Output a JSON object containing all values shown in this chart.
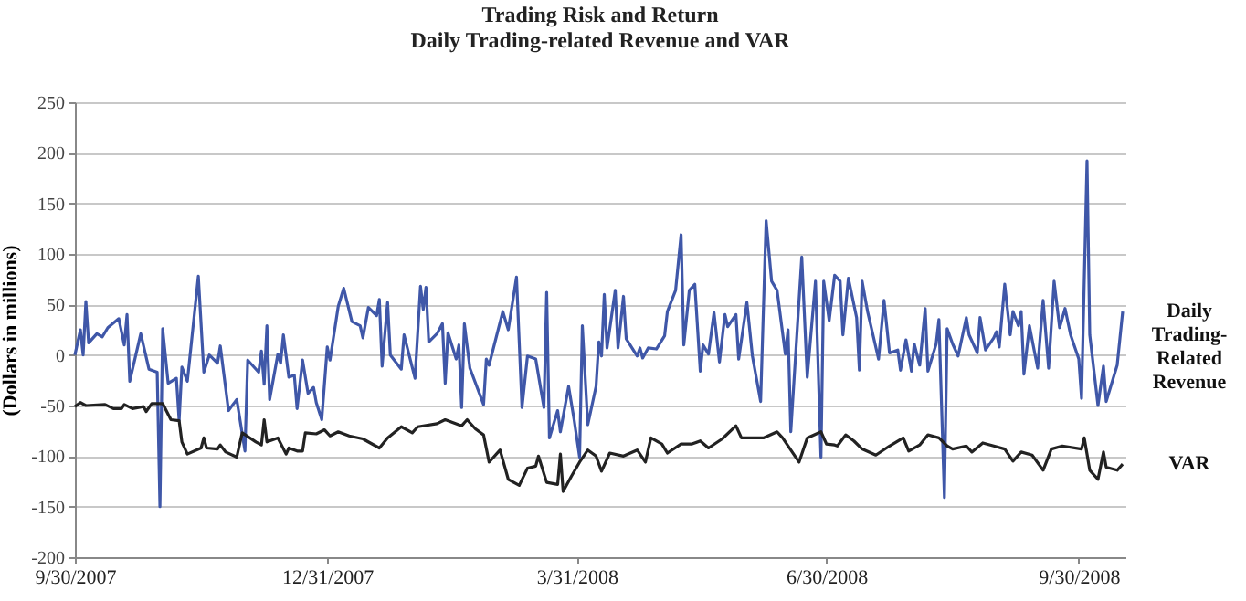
{
  "chart_data": {
    "type": "line",
    "title": "Trading Risk and Return",
    "subtitle": "Daily Trading-related Revenue and VAR",
    "ylabel": "(Dollars in millions)",
    "xlim": [
      "2007-09-30",
      "2008-10-17"
    ],
    "xticks": [
      {
        "value": "2007-09-30",
        "label": "9/30/2007"
      },
      {
        "value": "2007-12-31",
        "label": "12/31/2007"
      },
      {
        "value": "2008-03-31",
        "label": "3/31/2008"
      },
      {
        "value": "2008-06-30",
        "label": "6/30/2008"
      },
      {
        "value": "2008-09-30",
        "label": "9/30/2008"
      }
    ],
    "ylim": [
      -200,
      250
    ],
    "yticks": [
      -200,
      -150,
      -100,
      -50,
      0,
      50,
      100,
      150,
      200,
      250
    ],
    "grid": "y",
    "legend": false,
    "marker": "none",
    "line_style": "solid",
    "series": [
      {
        "name": "Daily Trading-Related Revenue",
        "color": "#3f57a8",
        "x": [
          "2007-09-30",
          "2007-10-02",
          "2007-10-03",
          "2007-10-04",
          "2007-10-05",
          "2007-10-08",
          "2007-10-10",
          "2007-10-12",
          "2007-10-16",
          "2007-10-18",
          "2007-10-19",
          "2007-10-20",
          "2007-10-24",
          "2007-10-27",
          "2007-10-30",
          "2007-10-31",
          "2007-11-01",
          "2007-11-03",
          "2007-11-06",
          "2007-11-07",
          "2007-11-08",
          "2007-11-10",
          "2007-11-14",
          "2007-11-16",
          "2007-11-18",
          "2007-11-21",
          "2007-11-22",
          "2007-11-25",
          "2007-11-28",
          "2007-12-01",
          "2007-12-02",
          "2007-12-06",
          "2007-12-07",
          "2007-12-08",
          "2007-12-09",
          "2007-12-10",
          "2007-12-13",
          "2007-12-14",
          "2007-12-15",
          "2007-12-17",
          "2007-12-19",
          "2007-12-20",
          "2007-12-22",
          "2007-12-24",
          "2007-12-26",
          "2007-12-27",
          "2007-12-29",
          "2007-12-31",
          "2008-01-01",
          "2008-01-04",
          "2008-01-06",
          "2008-01-09",
          "2008-01-12",
          "2008-01-13",
          "2008-01-15",
          "2008-01-18",
          "2008-01-19",
          "2008-01-20",
          "2008-01-22",
          "2008-01-23",
          "2008-01-27",
          "2008-01-28",
          "2008-02-01",
          "2008-02-03",
          "2008-02-04",
          "2008-02-05",
          "2008-02-06",
          "2008-02-09",
          "2008-02-11",
          "2008-02-12",
          "2008-02-13",
          "2008-02-16",
          "2008-02-17",
          "2008-02-18",
          "2008-02-19",
          "2008-02-21",
          "2008-02-26",
          "2008-02-27",
          "2008-02-28",
          "2008-03-04",
          "2008-03-06",
          "2008-03-09",
          "2008-03-11",
          "2008-03-13",
          "2008-03-16",
          "2008-03-19",
          "2008-03-20",
          "2008-03-21",
          "2008-03-24",
          "2008-03-25",
          "2008-03-28",
          "2008-03-30",
          "2008-04-01",
          "2008-04-02",
          "2008-04-04",
          "2008-04-07",
          "2008-04-08",
          "2008-04-09",
          "2008-04-10",
          "2008-04-11",
          "2008-04-14",
          "2008-04-15",
          "2008-04-17",
          "2008-04-18",
          "2008-04-22",
          "2008-04-23",
          "2008-04-24",
          "2008-04-26",
          "2008-04-29",
          "2008-05-02",
          "2008-05-03",
          "2008-05-06",
          "2008-05-08",
          "2008-05-09",
          "2008-05-11",
          "2008-05-13",
          "2008-05-15",
          "2008-05-16",
          "2008-05-18",
          "2008-05-20",
          "2008-05-22",
          "2008-05-24",
          "2008-05-25",
          "2008-05-28",
          "2008-05-29",
          "2008-06-01",
          "2008-06-03",
          "2008-06-06",
          "2008-06-08",
          "2008-06-10",
          "2008-06-12",
          "2008-06-15",
          "2008-06-16",
          "2008-06-17",
          "2008-06-21",
          "2008-06-23",
          "2008-06-26",
          "2008-06-28",
          "2008-06-29",
          "2008-07-01",
          "2008-07-03",
          "2008-07-05",
          "2008-07-06",
          "2008-07-08",
          "2008-07-11",
          "2008-07-12",
          "2008-07-13",
          "2008-07-15",
          "2008-07-19",
          "2008-07-21",
          "2008-07-23",
          "2008-07-26",
          "2008-07-27",
          "2008-07-29",
          "2008-07-31",
          "2008-08-01",
          "2008-08-03",
          "2008-08-05",
          "2008-08-06",
          "2008-08-09",
          "2008-08-10",
          "2008-08-12",
          "2008-08-13",
          "2008-08-15",
          "2008-08-17",
          "2008-08-20",
          "2008-08-21",
          "2008-08-24",
          "2008-08-25",
          "2008-08-27",
          "2008-08-30",
          "2008-08-31",
          "2008-09-01",
          "2008-09-03",
          "2008-09-05",
          "2008-09-06",
          "2008-09-08",
          "2008-09-09",
          "2008-09-10",
          "2008-09-12",
          "2008-09-15",
          "2008-09-17",
          "2008-09-19",
          "2008-09-21",
          "2008-09-23",
          "2008-09-25",
          "2008-09-27",
          "2008-09-30",
          "2008-10-01",
          "2008-10-03",
          "2008-10-04",
          "2008-10-07",
          "2008-10-09",
          "2008-10-10",
          "2008-10-14",
          "2008-10-16"
        ],
        "values": [
          0,
          25,
          0,
          53,
          12,
          21,
          18,
          27,
          36,
          10,
          40,
          -26,
          21,
          -14,
          -17,
          -150,
          26,
          -28,
          -23,
          -65,
          -12,
          -26,
          78,
          -17,
          0,
          -8,
          9,
          -55,
          -44,
          -95,
          -5,
          -17,
          4,
          -29,
          29,
          -44,
          1,
          -8,
          20,
          -22,
          -20,
          -53,
          -5,
          -38,
          -32,
          -47,
          -64,
          8,
          -5,
          48,
          66,
          33,
          29,
          17,
          47,
          39,
          55,
          -11,
          52,
          0,
          -14,
          20,
          -23,
          68,
          45,
          67,
          13,
          21,
          31,
          -28,
          22,
          -4,
          10,
          -52,
          31,
          -13,
          -49,
          -4,
          -10,
          43,
          25,
          77,
          -52,
          -1,
          -4,
          -52,
          62,
          -82,
          -55,
          -76,
          -31,
          -64,
          -101,
          29,
          -69,
          -31,
          13,
          -1,
          60,
          7,
          64,
          7,
          58,
          16,
          -1,
          7,
          -3,
          7,
          6,
          19,
          43,
          64,
          119,
          10,
          64,
          70,
          -16,
          10,
          1,
          42,
          -7,
          40,
          28,
          40,
          -4,
          52,
          -1,
          -46,
          133,
          73,
          64,
          1,
          25,
          -76,
          97,
          -22,
          73,
          -101,
          73,
          34,
          79,
          73,
          20,
          76,
          37,
          -15,
          73,
          43,
          -4,
          54,
          2,
          5,
          -15,
          15,
          -16,
          11,
          -10,
          46,
          -16,
          11,
          35,
          -141,
          26,
          11,
          -1,
          37,
          20,
          2,
          37,
          5,
          17,
          23,
          8,
          70,
          20,
          43,
          29,
          43,
          -19,
          29,
          -13,
          54,
          -13,
          73,
          27,
          46,
          20,
          -4,
          -43,
          192,
          20,
          -50,
          -11,
          -46,
          -10,
          43
        ]
      },
      {
        "name": "VAR",
        "color": "#222222",
        "x": [
          "2007-09-30",
          "2007-10-02",
          "2007-10-04",
          "2007-10-11",
          "2007-10-14",
          "2007-10-17",
          "2007-10-18",
          "2007-10-21",
          "2007-10-25",
          "2007-10-26",
          "2007-10-28",
          "2007-11-01",
          "2007-11-04",
          "2007-11-07",
          "2007-11-08",
          "2007-11-10",
          "2007-11-15",
          "2007-11-16",
          "2007-11-17",
          "2007-11-21",
          "2007-11-22",
          "2007-11-24",
          "2007-11-28",
          "2007-11-30",
          "2007-12-05",
          "2007-12-07",
          "2007-12-08",
          "2007-12-09",
          "2007-12-13",
          "2007-12-16",
          "2007-12-17",
          "2007-12-20",
          "2007-12-22",
          "2007-12-23",
          "2007-12-27",
          "2007-12-30",
          "2008-01-01",
          "2008-01-04",
          "2008-01-08",
          "2008-01-13",
          "2008-01-19",
          "2008-01-22",
          "2008-01-27",
          "2008-01-31",
          "2008-02-02",
          "2008-02-09",
          "2008-02-12",
          "2008-02-18",
          "2008-02-20",
          "2008-02-23",
          "2008-02-26",
          "2008-02-28",
          "2008-03-03",
          "2008-03-06",
          "2008-03-10",
          "2008-03-13",
          "2008-03-16",
          "2008-03-17",
          "2008-03-20",
          "2008-03-24",
          "2008-03-25",
          "2008-03-26",
          "2008-03-29",
          "2008-04-01",
          "2008-04-04",
          "2008-04-07",
          "2008-04-09",
          "2008-04-12",
          "2008-04-17",
          "2008-04-22",
          "2008-04-25",
          "2008-04-27",
          "2008-05-01",
          "2008-05-03",
          "2008-05-08",
          "2008-05-12",
          "2008-05-15",
          "2008-05-18",
          "2008-05-23",
          "2008-05-28",
          "2008-05-30",
          "2008-06-07",
          "2008-06-12",
          "2008-06-14",
          "2008-06-20",
          "2008-06-23",
          "2008-06-28",
          "2008-06-30",
          "2008-07-03",
          "2008-07-04",
          "2008-07-07",
          "2008-07-10",
          "2008-07-13",
          "2008-07-18",
          "2008-07-23",
          "2008-07-28",
          "2008-07-30",
          "2008-08-03",
          "2008-08-06",
          "2008-08-10",
          "2008-08-13",
          "2008-08-15",
          "2008-08-20",
          "2008-08-22",
          "2008-08-26",
          "2008-08-30",
          "2008-09-03",
          "2008-09-06",
          "2008-09-09",
          "2008-09-13",
          "2008-09-17",
          "2008-09-20",
          "2008-09-24",
          "2008-10-01",
          "2008-10-02",
          "2008-10-04",
          "2008-10-07",
          "2008-10-09",
          "2008-10-10",
          "2008-10-14",
          "2008-10-16"
        ],
        "values": [
          -51,
          -47,
          -50,
          -49,
          -53,
          -53,
          -49,
          -53,
          -51,
          -56,
          -48,
          -48,
          -64,
          -65,
          -86,
          -98,
          -92,
          -82,
          -92,
          -93,
          -89,
          -96,
          -101,
          -77,
          -86,
          -89,
          -64,
          -86,
          -82,
          -98,
          -92,
          -95,
          -95,
          -77,
          -78,
          -74,
          -80,
          -76,
          -80,
          -83,
          -92,
          -82,
          -71,
          -77,
          -71,
          -68,
          -64,
          -70,
          -64,
          -73,
          -79,
          -106,
          -94,
          -123,
          -129,
          -112,
          -110,
          -100,
          -126,
          -128,
          -98,
          -135,
          -120,
          -106,
          -94,
          -100,
          -115,
          -97,
          -100,
          -94,
          -106,
          -82,
          -88,
          -97,
          -88,
          -88,
          -85,
          -92,
          -83,
          -70,
          -82,
          -82,
          -76,
          -82,
          -106,
          -82,
          -76,
          -88,
          -89,
          -90,
          -79,
          -85,
          -93,
          -99,
          -90,
          -82,
          -95,
          -89,
          -79,
          -82,
          -90,
          -93,
          -90,
          -96,
          -87,
          -90,
          -93,
          -105,
          -96,
          -99,
          -114,
          -93,
          -90,
          -93,
          -82,
          -114,
          -123,
          -96,
          -111,
          -114,
          -108
        ]
      }
    ]
  }
}
